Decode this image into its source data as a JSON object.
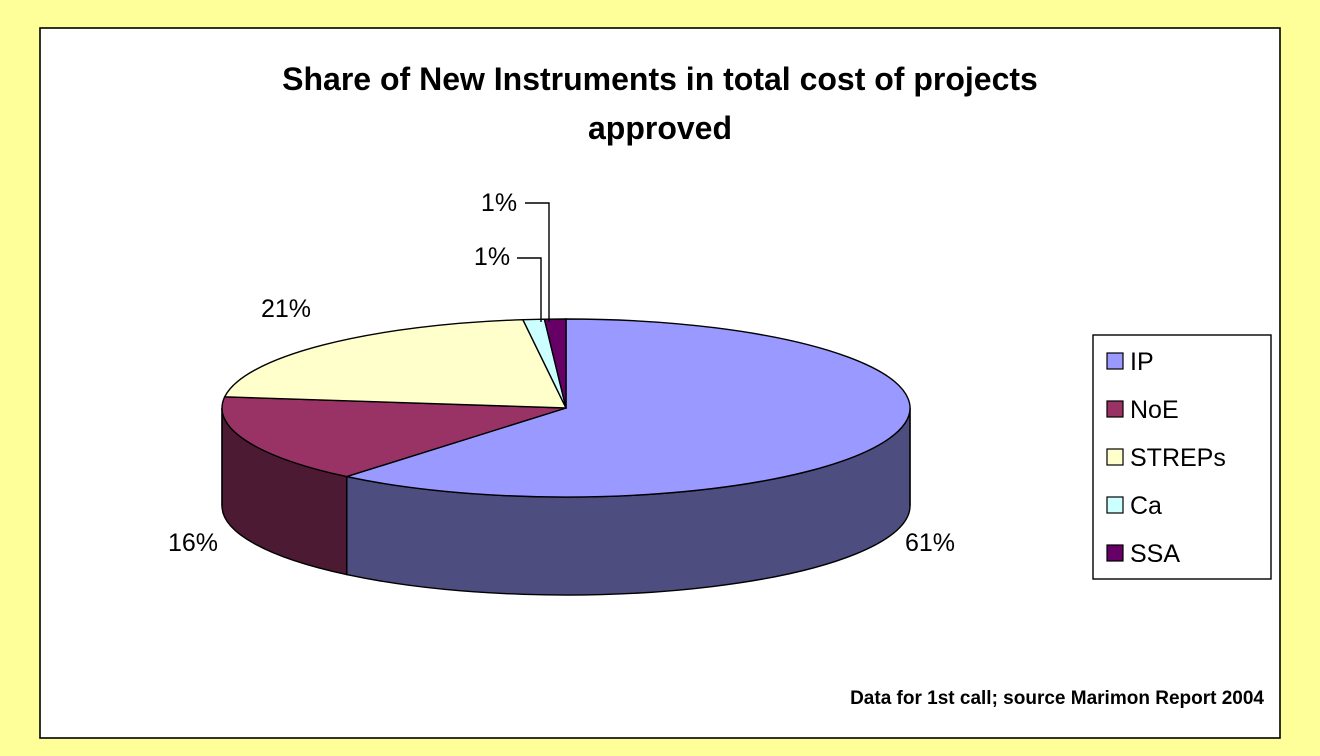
{
  "chart_data": {
    "type": "pie",
    "title": "Share of New Instruments in total cost of projects approved",
    "title_lines": [
      "Share of New Instruments in total cost of projects",
      "approved"
    ],
    "style": "3d",
    "legend_position": "right",
    "categories": [
      "IP",
      "NoE",
      "STREPs",
      "Ca",
      "SSA"
    ],
    "values": [
      61,
      16,
      21,
      1,
      1
    ],
    "value_labels": [
      "61%",
      "16%",
      "21%",
      "1%",
      "1%"
    ],
    "colors": {
      "IP": "#9999ff",
      "NoE": "#993366",
      "STREPs": "#ffffcc",
      "Ca": "#ccffff",
      "SSA": "#660066"
    },
    "side_colors": {
      "IP": "#4d4d80",
      "NoE": "#4d1a33",
      "STREPs": "#808066",
      "Ca": "#668080",
      "SSA": "#330033"
    },
    "footnote": "Data for 1st call; source Marimon Report 2004"
  },
  "page": {
    "background": "#ffff99"
  }
}
